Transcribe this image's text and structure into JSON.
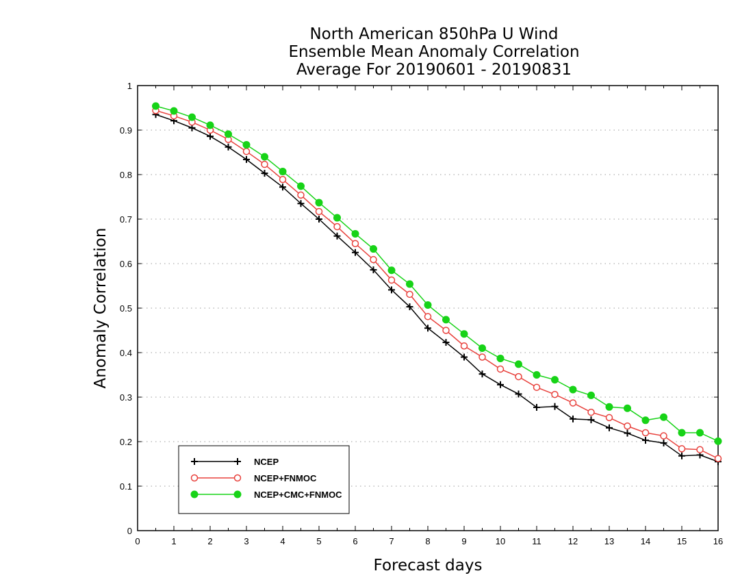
{
  "chart_data": {
    "type": "line",
    "title": [
      "North American 850hPa U Wind",
      "Ensemble Mean Anomaly Correlation",
      "Average For 20190601 - 20190831"
    ],
    "xlabel": "Forecast days",
    "ylabel": "Anomaly Correlation",
    "xlim": [
      0,
      16
    ],
    "ylim": [
      0,
      1
    ],
    "xticks": [
      "0",
      "1",
      "2",
      "3",
      "4",
      "5",
      "6",
      "7",
      "8",
      "9",
      "10",
      "11",
      "12",
      "13",
      "14",
      "15",
      "16"
    ],
    "yticks": [
      "0",
      "0.1",
      "0.2",
      "0.3",
      "0.4",
      "0.5",
      "0.6",
      "0.7",
      "0.8",
      "0.9",
      "1"
    ],
    "grid": "horizontal-dotted",
    "legend_position": "bottom-left",
    "x": [
      0.5,
      1,
      1.5,
      2,
      2.5,
      3,
      3.5,
      4,
      4.5,
      5,
      5.5,
      6,
      6.5,
      7,
      7.5,
      8,
      8.5,
      9,
      9.5,
      10,
      10.5,
      11,
      11.5,
      12,
      12.5,
      13,
      13.5,
      14,
      14.5,
      15,
      15.5,
      16
    ],
    "series": [
      {
        "name": "NCEP",
        "color": "#000000",
        "marker": "plus",
        "values": [
          0.935,
          0.921,
          0.905,
          0.886,
          0.862,
          0.834,
          0.803,
          0.772,
          0.735,
          0.7,
          0.662,
          0.625,
          0.586,
          0.541,
          0.503,
          0.455,
          0.423,
          0.39,
          0.352,
          0.328,
          0.307,
          0.277,
          0.279,
          0.251,
          0.249,
          0.231,
          0.219,
          0.203,
          0.197,
          0.168,
          0.17,
          0.155
        ]
      },
      {
        "name": "NCEP+FNMOC",
        "color": "#e8413c",
        "marker": "open-circle",
        "values": [
          0.944,
          0.932,
          0.918,
          0.9,
          0.879,
          0.852,
          0.823,
          0.789,
          0.754,
          0.717,
          0.683,
          0.645,
          0.609,
          0.563,
          0.531,
          0.481,
          0.45,
          0.415,
          0.39,
          0.363,
          0.346,
          0.322,
          0.306,
          0.287,
          0.266,
          0.254,
          0.235,
          0.22,
          0.213,
          0.184,
          0.182,
          0.162
        ]
      },
      {
        "name": "NCEP+CMC+FNMOC",
        "color": "#17d317",
        "marker": "filled-circle",
        "values": [
          0.954,
          0.943,
          0.929,
          0.911,
          0.891,
          0.867,
          0.84,
          0.807,
          0.774,
          0.737,
          0.703,
          0.667,
          0.633,
          0.585,
          0.554,
          0.507,
          0.474,
          0.442,
          0.41,
          0.387,
          0.374,
          0.35,
          0.339,
          0.317,
          0.304,
          0.278,
          0.275,
          0.248,
          0.255,
          0.22,
          0.22,
          0.201
        ]
      }
    ]
  }
}
